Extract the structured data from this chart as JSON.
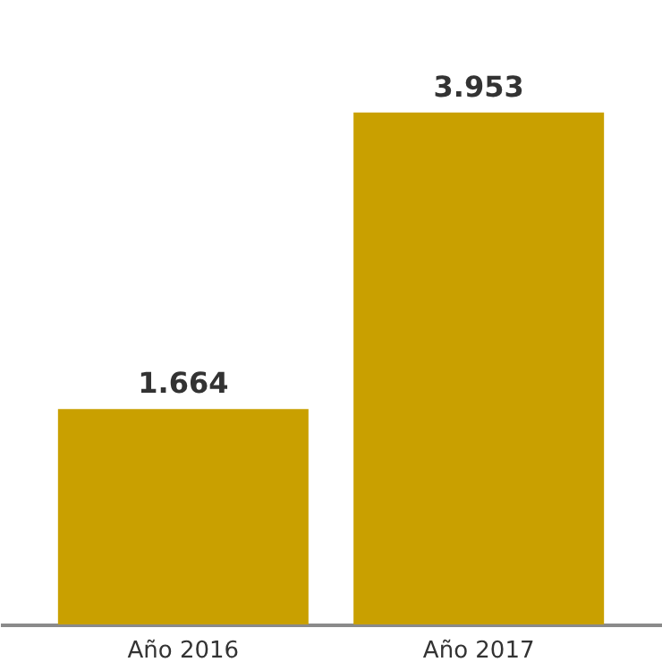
{
  "chart_data": {
    "type": "bar",
    "categories": [
      "Año 2016",
      "Año 2017"
    ],
    "values": [
      1664,
      3953
    ],
    "value_labels": [
      "1.664",
      "3.953"
    ],
    "color": "#c9a000"
  }
}
